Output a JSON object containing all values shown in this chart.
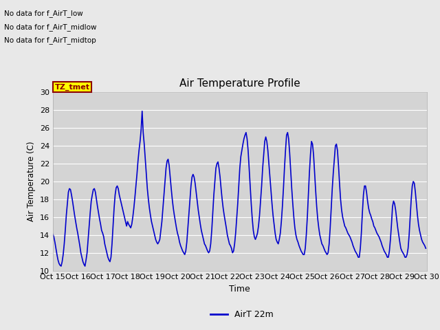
{
  "title": "Air Temperature Profile",
  "xlabel": "Time",
  "ylabel": "Air Temperature (C)",
  "ylim": [
    10,
    30
  ],
  "yticks": [
    10,
    12,
    14,
    16,
    18,
    20,
    22,
    24,
    26,
    28,
    30
  ],
  "line_color": "#0000cc",
  "line_width": 1.2,
  "bg_color": "#e8e8e8",
  "plot_bg_color": "#d4d4d4",
  "legend_label": "AirT 22m",
  "annotations": [
    "No data for f_AirT_low",
    "No data for f_AirT_midlow",
    "No data for f_AirT_midtop"
  ],
  "tz_label": "TZ_tmet",
  "x_tick_labels": [
    "Oct 15",
    "Oct 16",
    "Oct 17",
    "Oct 18",
    "Oct 19",
    "Oct 20",
    "Oct 21",
    "Oct 22",
    "Oct 23",
    "Oct 24",
    "Oct 25",
    "Oct 26",
    "Oct 27",
    "Oct 28",
    "Oct 29",
    "Oct 30"
  ],
  "x_tick_positions": [
    0,
    24,
    48,
    72,
    96,
    120,
    144,
    168,
    192,
    216,
    240,
    264,
    288,
    312,
    336,
    360
  ],
  "xlim": [
    0,
    360
  ],
  "temperature_data": [
    14.1,
    13.8,
    13.2,
    12.5,
    11.8,
    11.2,
    10.8,
    10.6,
    10.5,
    11.0,
    11.8,
    13.0,
    14.5,
    16.2,
    17.5,
    18.8,
    19.2,
    19.1,
    18.5,
    17.8,
    17.0,
    16.2,
    15.5,
    14.8,
    14.2,
    13.5,
    12.8,
    12.0,
    11.5,
    11.0,
    10.7,
    10.5,
    11.2,
    12.0,
    13.5,
    15.0,
    16.5,
    17.8,
    18.5,
    19.1,
    19.2,
    18.8,
    18.0,
    17.2,
    16.5,
    15.8,
    15.2,
    14.5,
    14.2,
    13.8,
    13.0,
    12.5,
    12.0,
    11.5,
    11.2,
    11.0,
    11.5,
    13.0,
    15.0,
    17.0,
    18.5,
    19.3,
    19.5,
    19.2,
    18.5,
    18.0,
    17.5,
    17.0,
    16.5,
    16.0,
    15.5,
    15.0,
    15.5,
    15.2,
    15.0,
    14.8,
    15.2,
    16.0,
    17.0,
    18.2,
    19.5,
    20.8,
    22.3,
    23.5,
    24.5,
    25.8,
    27.9,
    25.5,
    24.2,
    22.5,
    20.8,
    19.2,
    18.0,
    17.0,
    16.2,
    15.5,
    15.0,
    14.5,
    14.0,
    13.5,
    13.2,
    13.0,
    13.2,
    13.5,
    14.5,
    15.5,
    17.0,
    18.5,
    20.0,
    21.5,
    22.3,
    22.5,
    21.8,
    20.5,
    19.2,
    18.0,
    17.0,
    16.2,
    15.5,
    14.8,
    14.2,
    13.8,
    13.2,
    12.8,
    12.5,
    12.2,
    12.0,
    11.8,
    12.2,
    13.2,
    14.8,
    16.5,
    18.0,
    19.5,
    20.5,
    20.8,
    20.5,
    19.8,
    18.8,
    17.8,
    16.8,
    16.0,
    15.2,
    14.5,
    14.0,
    13.5,
    13.0,
    12.8,
    12.5,
    12.2,
    12.0,
    12.2,
    13.0,
    14.5,
    16.5,
    18.5,
    20.0,
    21.5,
    22.0,
    22.2,
    21.5,
    20.5,
    19.2,
    18.0,
    17.0,
    16.2,
    15.5,
    14.8,
    14.0,
    13.5,
    13.0,
    12.8,
    12.5,
    12.0,
    12.2,
    13.0,
    14.2,
    15.8,
    17.5,
    19.5,
    21.5,
    22.8,
    23.5,
    24.2,
    24.8,
    25.2,
    25.5,
    24.8,
    23.5,
    21.5,
    19.5,
    17.5,
    15.8,
    14.5,
    13.8,
    13.5,
    13.8,
    14.2,
    15.0,
    16.2,
    17.8,
    19.5,
    21.5,
    23.0,
    24.5,
    25.0,
    24.5,
    23.5,
    22.0,
    20.5,
    19.0,
    17.5,
    16.2,
    15.2,
    14.2,
    13.5,
    13.2,
    13.0,
    13.5,
    14.2,
    15.5,
    17.2,
    19.2,
    21.5,
    23.5,
    25.2,
    25.5,
    24.8,
    23.2,
    21.2,
    19.2,
    17.5,
    16.0,
    14.8,
    14.0,
    13.5,
    13.2,
    12.8,
    12.5,
    12.2,
    12.0,
    11.8,
    11.8,
    12.5,
    14.0,
    16.0,
    18.5,
    21.0,
    23.0,
    24.5,
    24.2,
    23.0,
    21.0,
    19.0,
    17.2,
    15.8,
    14.8,
    14.0,
    13.5,
    13.0,
    12.8,
    12.5,
    12.2,
    12.0,
    11.8,
    12.0,
    13.0,
    14.8,
    17.0,
    19.2,
    21.0,
    22.5,
    24.0,
    24.2,
    23.5,
    21.8,
    19.8,
    18.0,
    16.8,
    16.0,
    15.5,
    15.0,
    14.8,
    14.5,
    14.2,
    14.0,
    13.8,
    13.5,
    13.2,
    12.8,
    12.5,
    12.2,
    12.0,
    11.8,
    11.5,
    11.5,
    12.5,
    14.2,
    16.5,
    18.5,
    19.5,
    19.5,
    18.8,
    17.8,
    17.0,
    16.5,
    16.2,
    15.8,
    15.5,
    15.0,
    14.8,
    14.5,
    14.2,
    14.0,
    13.8,
    13.5,
    13.2,
    12.8,
    12.5,
    12.2,
    12.0,
    11.8,
    11.5,
    11.5,
    12.2,
    13.5,
    15.2,
    17.2,
    17.8,
    17.5,
    16.8,
    15.8,
    14.8,
    14.0,
    13.2,
    12.5,
    12.2,
    12.0,
    11.8,
    11.5,
    11.5,
    11.8,
    12.5,
    14.0,
    16.0,
    18.0,
    19.5,
    20.0,
    19.8,
    18.8,
    17.5,
    16.2,
    15.2,
    14.5,
    14.0,
    13.5,
    13.2,
    13.0,
    12.8,
    12.5
  ]
}
